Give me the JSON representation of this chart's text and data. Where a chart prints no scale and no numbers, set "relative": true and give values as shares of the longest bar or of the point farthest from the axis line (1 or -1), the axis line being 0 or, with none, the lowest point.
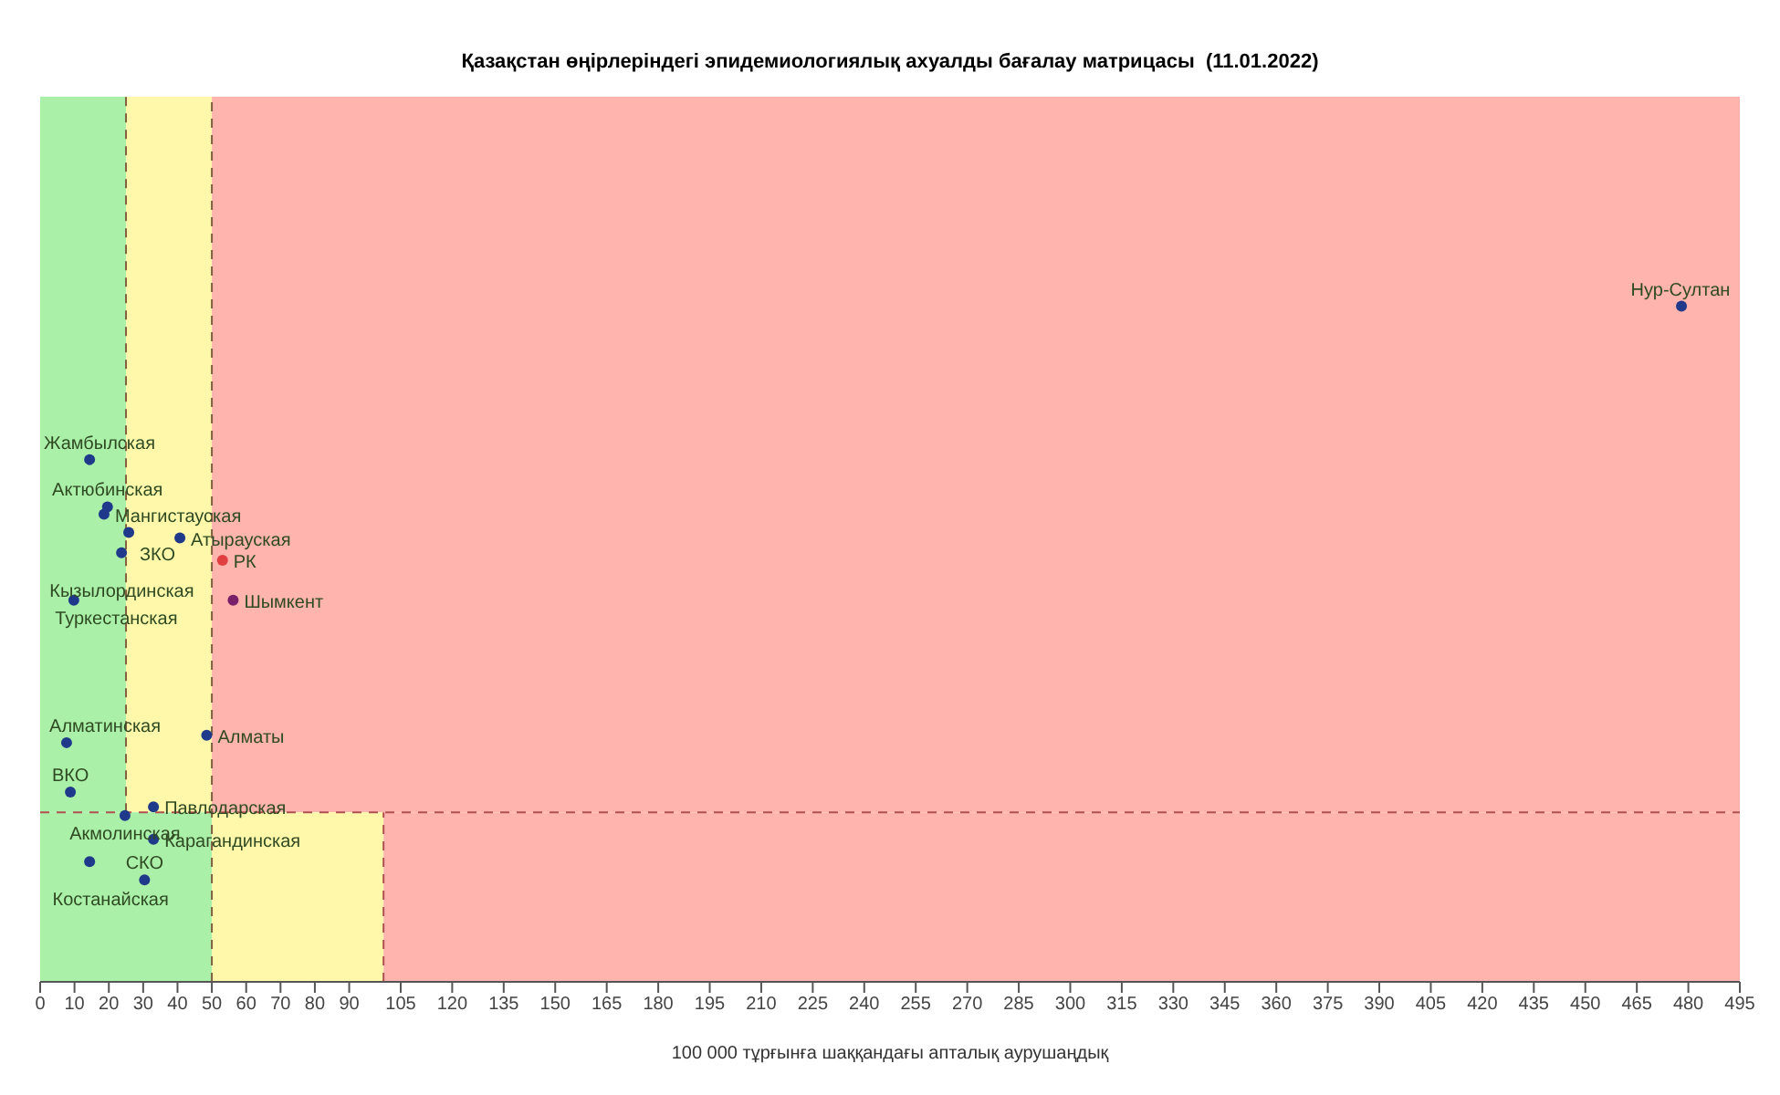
{
  "chart_data": {
    "type": "scatter",
    "title": "Қазақстан өңірлеріндегі эпидемиологиялық ахуалды бағалау матрицасы  (11.01.2022)",
    "xlabel": "100 000 тұрғынға шаққандағы апталық аурушаңдық",
    "relative": true,
    "xlim": [
      0,
      495
    ],
    "xticks": [
      0,
      10,
      20,
      30,
      40,
      50,
      60,
      70,
      80,
      90,
      105,
      120,
      135,
      150,
      165,
      180,
      195,
      210,
      225,
      240,
      255,
      270,
      285,
      300,
      315,
      330,
      345,
      360,
      375,
      390,
      405,
      420,
      435,
      450,
      465,
      480,
      495
    ],
    "marker": "circle",
    "series": [
      {
        "color": "#1f3a8a",
        "x": [
          478,
          14.4,
          19.6,
          18.6,
          25.8,
          40.7,
          23.7,
          9.8,
          7.7,
          48.5,
          8.8,
          33,
          24.7,
          33,
          14.4,
          30.4
        ],
        "values": [
          1,
          0.773,
          0.703,
          0.692,
          0.665,
          0.657,
          0.635,
          0.565,
          0.354,
          0.365,
          0.281,
          0.259,
          0.246,
          0.211,
          0.178,
          0.151
        ]
      },
      {
        "color": "#e04040",
        "x": [
          53.1
        ],
        "values": [
          0.624
        ]
      },
      {
        "color": "#7a1f6a",
        "x": [
          56.2
        ],
        "values": [
          0.565
        ]
      }
    ],
    "bands": [
      {
        "axis": "x",
        "from": 0,
        "to": 25,
        "color": "#aaf0a8"
      },
      {
        "axis": "x",
        "from": 25,
        "to": 50,
        "color": "#fff8aa"
      },
      {
        "axis": "x",
        "from": 50,
        "to": 495,
        "color": "#ffb4ae"
      },
      {
        "axis": "x",
        "from": 0,
        "to": 50,
        "color": "#aaf0a8"
      },
      {
        "axis": "x",
        "from": 50,
        "to": 100,
        "color": "#fff8aa"
      },
      {
        "axis": "x",
        "from": 100,
        "to": 495,
        "color": "#ffb4ae"
      }
    ],
    "ref_lines": [
      {
        "axis": "y",
        "value": 0.251,
        "color": "#b05050",
        "line_style": "dashed"
      },
      {
        "axis": "x",
        "value": 25,
        "color": "#806040",
        "line_style": "dashed"
      },
      {
        "axis": "x",
        "value": 50,
        "color": "#806040",
        "line_style": "dashed"
      },
      {
        "axis": "x",
        "value": 100,
        "color": "#b05050",
        "line_style": "dashed"
      }
    ],
    "annotations": [
      {
        "text": "Нур-Султан",
        "x": 478,
        "y": 1
      },
      {
        "text": "Жамбылская",
        "x": 14.4,
        "y": 0.773
      },
      {
        "text": "Актюбинская",
        "x": 19.6,
        "y": 0.703
      },
      {
        "text": "Мангистауская",
        "x": 18.6,
        "y": 0.692
      },
      {
        "text": "ЗКО",
        "x": 25.8,
        "y": 0.665
      },
      {
        "text": "Атырауская",
        "x": 40.7,
        "y": 0.657
      },
      {
        "text": "Кызылординская",
        "x": 23.7,
        "y": 0.635
      },
      {
        "text": "РК",
        "x": 53.1,
        "y": 0.624
      },
      {
        "text": "Шымкент",
        "x": 56.2,
        "y": 0.565
      },
      {
        "text": "Туркестанская",
        "x": 9.8,
        "y": 0.565
      },
      {
        "text": "Алматинская",
        "x": 7.7,
        "y": 0.354
      },
      {
        "text": "Алматы",
        "x": 48.5,
        "y": 0.365
      },
      {
        "text": "ВКО",
        "x": 8.8,
        "y": 0.281
      },
      {
        "text": "Павлодарская",
        "x": 33,
        "y": 0.259
      },
      {
        "text": "Карагандинская",
        "x": 33,
        "y": 0.211
      },
      {
        "text": "Акмолинская",
        "x": 24.7,
        "y": 0.246
      },
      {
        "text": "Костанайская",
        "x": 14.4,
        "y": 0.178
      },
      {
        "text": "СКО",
        "x": 30.4,
        "y": 0.151
      }
    ]
  }
}
